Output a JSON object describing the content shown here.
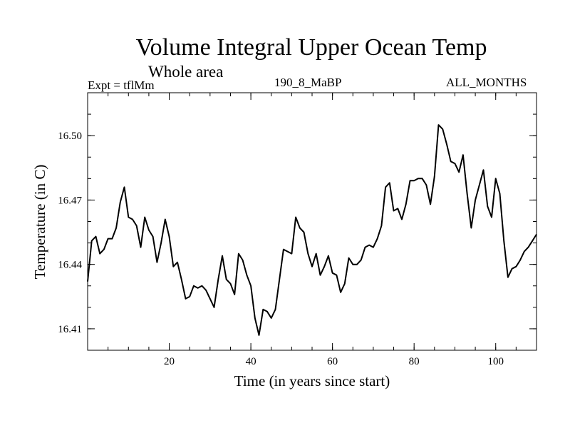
{
  "chart_data": {
    "type": "line",
    "title": "Volume Integral Upper Ocean Temp",
    "subtitle": "Whole area",
    "annotations": {
      "experiment": "Expt = tflMm",
      "run": "190_8_MaBP",
      "season": "ALL_MONTHS"
    },
    "xlabel": "Time (in years since start)",
    "ylabel": "Temperature (in C)",
    "xlim": [
      0,
      110
    ],
    "ylim": [
      16.4,
      16.52
    ],
    "xticks": [
      20,
      40,
      60,
      80,
      100
    ],
    "xtick_labels": [
      "20",
      "40",
      "60",
      "80",
      "100"
    ],
    "yticks": [
      16.41,
      16.44,
      16.47,
      16.5
    ],
    "ytick_labels": [
      "16.41",
      "16.44",
      "16.47",
      "16.50"
    ],
    "grid": false,
    "series": [
      {
        "name": "Temperature",
        "x": [
          0,
          1,
          2,
          3,
          4,
          5,
          6,
          7,
          8,
          9,
          10,
          11,
          12,
          13,
          14,
          15,
          16,
          17,
          18,
          19,
          20,
          21,
          22,
          23,
          24,
          25,
          26,
          27,
          28,
          29,
          30,
          31,
          32,
          33,
          34,
          35,
          36,
          37,
          38,
          39,
          40,
          41,
          42,
          43,
          44,
          45,
          46,
          47,
          48,
          49,
          50,
          51,
          52,
          53,
          54,
          55,
          56,
          57,
          58,
          59,
          60,
          61,
          62,
          63,
          64,
          65,
          66,
          67,
          68,
          69,
          70,
          71,
          72,
          73,
          74,
          75,
          76,
          77,
          78,
          79,
          80,
          81,
          82,
          83,
          84,
          85,
          86,
          87,
          88,
          89,
          90,
          91,
          92,
          93,
          94,
          95,
          96,
          97,
          98,
          99,
          100,
          101,
          102,
          103,
          104,
          105,
          106,
          107,
          108,
          109,
          110
        ],
        "values": [
          16.432,
          16.451,
          16.453,
          16.445,
          16.447,
          16.452,
          16.452,
          16.457,
          16.469,
          16.476,
          16.462,
          16.461,
          16.458,
          16.448,
          16.462,
          16.456,
          16.453,
          16.441,
          16.45,
          16.461,
          16.453,
          16.439,
          16.441,
          16.433,
          16.424,
          16.425,
          16.43,
          16.429,
          16.43,
          16.428,
          16.424,
          16.42,
          16.433,
          16.444,
          16.433,
          16.431,
          16.426,
          16.445,
          16.442,
          16.435,
          16.43,
          16.415,
          16.407,
          16.419,
          16.418,
          16.415,
          16.419,
          16.433,
          16.447,
          16.446,
          16.445,
          16.462,
          16.457,
          16.455,
          16.445,
          16.439,
          16.445,
          16.435,
          16.439,
          16.444,
          16.436,
          16.435,
          16.427,
          16.431,
          16.443,
          16.44,
          16.44,
          16.442,
          16.448,
          16.449,
          16.448,
          16.452,
          16.458,
          16.476,
          16.478,
          16.465,
          16.466,
          16.461,
          16.468,
          16.479,
          16.479,
          16.48,
          16.48,
          16.477,
          16.468,
          16.481,
          16.505,
          16.503,
          16.496,
          16.488,
          16.487,
          16.483,
          16.491,
          16.473,
          16.457,
          16.47,
          16.477,
          16.484,
          16.467,
          16.462,
          16.48,
          16.473,
          16.451,
          16.434,
          16.438,
          16.439,
          16.442,
          16.446,
          16.448,
          16.451,
          16.454
        ]
      }
    ]
  }
}
